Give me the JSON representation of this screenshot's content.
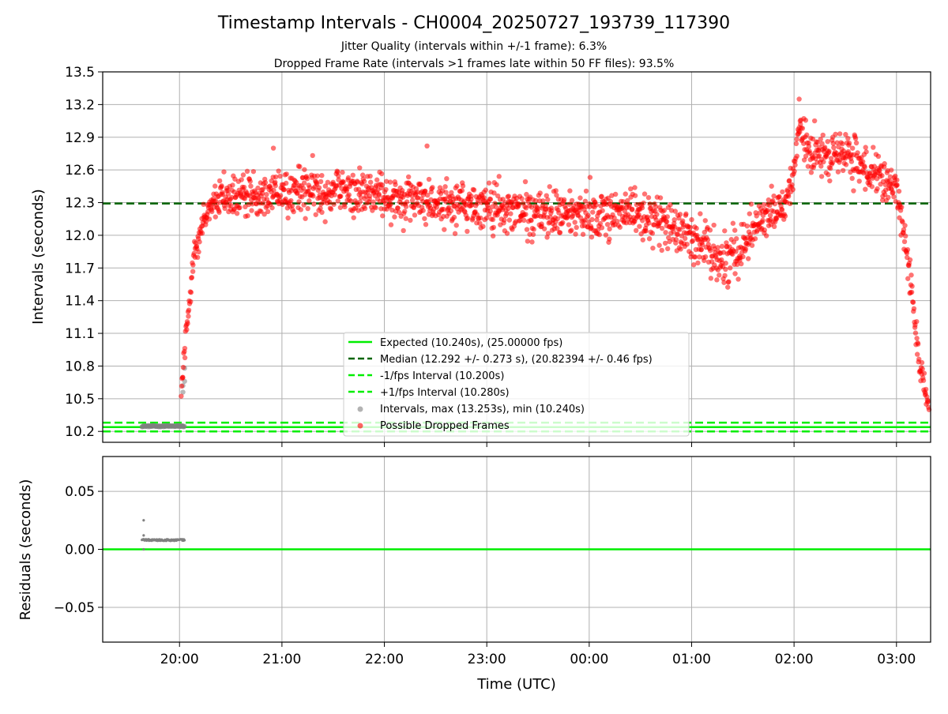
{
  "figure": {
    "title": "Timestamp Intervals - CH0004_20250727_193739_117390",
    "subtitle1": "Jitter Quality (intervals within +/-1 frame): 6.3%",
    "subtitle2": "Dropped Frame Rate (intervals >1 frames late within 50 FF files): 93.5%"
  },
  "colors": {
    "expected": "#00ee00",
    "median": "#006400",
    "fps_bounds": "#00ee00",
    "normal_points": "#808080",
    "dropped_points": "#ff0000",
    "residual_line": "#00ee00",
    "grid": "#b0b0b0"
  },
  "chart_data": [
    {
      "type": "scatter",
      "xlabel": "",
      "ylabel": "Intervals (seconds)",
      "xlim": [
        "19:15",
        "03:20"
      ],
      "ylim": [
        10.1,
        13.5
      ],
      "yticks": [
        10.2,
        10.5,
        10.8,
        11.1,
        11.4,
        11.7,
        12.0,
        12.3,
        12.6,
        12.9,
        13.2,
        13.5
      ],
      "ytick_labels": [
        "10.2",
        "10.5",
        "10.8",
        "11.1",
        "11.4",
        "11.7",
        "12.0",
        "12.3",
        "12.6",
        "12.9",
        "13.2",
        "13.5"
      ],
      "grid": true,
      "legend_position": "lower-center",
      "reference_lines": [
        {
          "name": "Expected (10.240s), (25.00000 fps)",
          "y": 10.24,
          "style": "solid"
        },
        {
          "name": "Median (12.292 +/- 0.273 s), (20.82394 +/- 0.46 fps)",
          "y": 12.292,
          "style": "dashed"
        },
        {
          "name": "-1/fps Interval (10.200s)",
          "y": 10.2,
          "style": "dashed"
        },
        {
          "name": "+1/fps Interval (10.280s)",
          "y": 10.28,
          "style": "dashed"
        }
      ],
      "scatter_series": [
        {
          "name": "Intervals, max (13.253s), min (10.240s)",
          "x_range": [
            "19:38",
            "20:03"
          ],
          "y_value": 10.248,
          "extra_points": [
            {
              "x": "20:02",
              "y": 10.56
            },
            {
              "x": "20:02",
              "y": 10.62
            },
            {
              "x": "20:03",
              "y": 10.66
            },
            {
              "x": "20:03",
              "y": 10.78
            }
          ]
        },
        {
          "name": "Possible Dropped Frames",
          "trend": [
            {
              "x": "20:01",
              "y": 10.5,
              "spread": 0.05
            },
            {
              "x": "20:03",
              "y": 10.95,
              "spread": 0.1
            },
            {
              "x": "20:06",
              "y": 11.45,
              "spread": 0.1
            },
            {
              "x": "20:09",
              "y": 11.85,
              "spread": 0.1
            },
            {
              "x": "20:13",
              "y": 12.1,
              "spread": 0.1
            },
            {
              "x": "20:20",
              "y": 12.3,
              "spread": 0.13
            },
            {
              "x": "20:40",
              "y": 12.38,
              "spread": 0.15
            },
            {
              "x": "21:30",
              "y": 12.42,
              "spread": 0.15
            },
            {
              "x": "22:30",
              "y": 12.3,
              "spread": 0.15
            },
            {
              "x": "23:30",
              "y": 12.2,
              "spread": 0.17
            },
            {
              "x": "00:30",
              "y": 12.2,
              "spread": 0.15
            },
            {
              "x": "01:00",
              "y": 12.0,
              "spread": 0.15
            },
            {
              "x": "01:20",
              "y": 11.75,
              "spread": 0.18
            },
            {
              "x": "01:40",
              "y": 12.15,
              "spread": 0.15
            },
            {
              "x": "01:55",
              "y": 12.3,
              "spread": 0.1
            },
            {
              "x": "02:00",
              "y": 12.6,
              "spread": 0.12
            },
            {
              "x": "02:03",
              "y": 12.95,
              "spread": 0.15
            },
            {
              "x": "02:10",
              "y": 12.75,
              "spread": 0.15
            },
            {
              "x": "02:30",
              "y": 12.75,
              "spread": 0.15
            },
            {
              "x": "02:50",
              "y": 12.5,
              "spread": 0.15
            },
            {
              "x": "03:00",
              "y": 12.4,
              "spread": 0.13
            },
            {
              "x": "03:05",
              "y": 12.0,
              "spread": 0.12
            },
            {
              "x": "03:09",
              "y": 11.5,
              "spread": 0.12
            },
            {
              "x": "03:13",
              "y": 10.85,
              "spread": 0.1
            },
            {
              "x": "03:19",
              "y": 10.4,
              "spread": 0.06
            }
          ],
          "notable_points": [
            {
              "x": "02:03",
              "y": 13.25
            },
            {
              "x": "22:25",
              "y": 12.82
            },
            {
              "x": "20:55",
              "y": 12.8
            }
          ]
        }
      ]
    },
    {
      "type": "scatter",
      "xlabel": "Time (UTC)",
      "ylabel": "Residuals (seconds)",
      "xlim": [
        "19:15",
        "03:20"
      ],
      "ylim": [
        -0.08,
        0.08
      ],
      "yticks": [
        -0.05,
        0.0,
        0.05
      ],
      "ytick_labels": [
        "−0.05",
        "0.00",
        "0.05"
      ],
      "xticks": [
        "20:00",
        "21:00",
        "22:00",
        "23:00",
        "00:00",
        "01:00",
        "02:00",
        "03:00"
      ],
      "grid": true,
      "reference_lines": [
        {
          "y": 0.0,
          "style": "solid"
        }
      ],
      "series": [
        {
          "x_range": [
            "19:38",
            "20:03"
          ],
          "y_value": 0.008,
          "extra_points": [
            {
              "x": "19:39",
              "y": 0.025
            },
            {
              "x": "19:39",
              "y": 0.012
            },
            {
              "x": "19:39",
              "y": 0.0
            }
          ]
        }
      ]
    }
  ]
}
